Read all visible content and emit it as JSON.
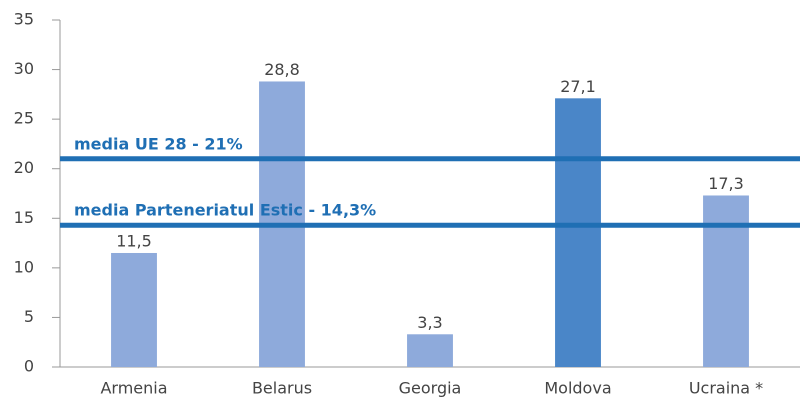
{
  "chart_data": {
    "type": "bar",
    "categories": [
      "Armenia",
      "Belarus",
      "Georgia",
      "Moldova",
      "Ucraina *"
    ],
    "values": [
      11.5,
      28.8,
      3.3,
      27.1,
      17.3
    ],
    "value_labels": [
      "11,5",
      "28,8",
      "3,3",
      "27,1",
      "17,3"
    ],
    "colors": [
      "#8eaadb",
      "#8eaadb",
      "#8eaadb",
      "#4a86c8",
      "#8eaadb"
    ],
    "ylim": [
      0,
      35
    ],
    "yticks": [
      0,
      5,
      10,
      15,
      20,
      25,
      30,
      35
    ],
    "grid": false,
    "reference_lines": [
      {
        "value": 21,
        "label": "media UE 28 - 21%",
        "color": "#1f6fb4"
      },
      {
        "value": 14.3,
        "label": "media Parteneriatul Estic - 14,3%",
        "color": "#1f6fb4"
      }
    ]
  }
}
